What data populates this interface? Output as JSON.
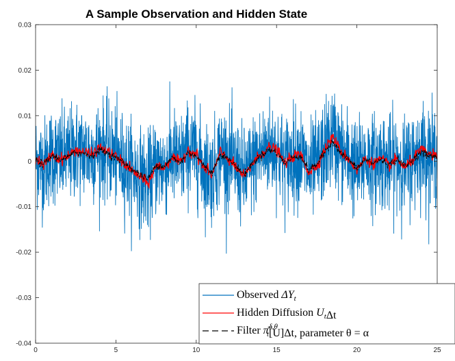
{
  "chart_data": {
    "type": "line",
    "title": "A Sample Observation and Hidden State",
    "xlabel": "",
    "ylabel": "",
    "xlim": [
      0,
      25
    ],
    "ylim": [
      -0.04,
      0.03
    ],
    "x_ticks": [
      0,
      5,
      10,
      15,
      20,
      25
    ],
    "x_tick_labels": [
      "0",
      "5",
      "10",
      "15",
      "20",
      "25"
    ],
    "y_ticks": [
      -0.04,
      -0.03,
      -0.02,
      -0.01,
      0,
      0.01,
      0.02,
      0.03
    ],
    "y_tick_labels": [
      "-0.04",
      "-0.03",
      "-0.02",
      "-0.01",
      "0",
      "0.01",
      "0.02",
      "0.03"
    ],
    "grid": false,
    "legend_position": "bottom-right",
    "series": [
      {
        "name": "Observed ΔY_t",
        "legend_parts": {
          "text": "Observed ",
          "math": "ΔY",
          "sub": "t"
        },
        "color": "#0072BD",
        "style": "solid",
        "noise_amplitude": 0.0085,
        "max": 0.027,
        "min": -0.027
      },
      {
        "name": "Hidden Diffusion U_tΔt",
        "legend_parts": {
          "text": "Hidden Diffusion ",
          "math": "U",
          "sub": "t",
          "after": "Δt"
        },
        "color": "#FF0000",
        "style": "solid",
        "x": [
          0,
          0.5,
          1,
          1.5,
          2,
          2.5,
          3,
          3.5,
          4,
          4.5,
          5,
          5.5,
          6,
          6.5,
          7,
          7.5,
          8,
          8.5,
          9,
          9.5,
          10,
          10.5,
          11,
          11.5,
          12,
          12.5,
          13,
          13.5,
          14,
          14.5,
          15,
          15.5,
          16,
          16.5,
          17,
          17.5,
          18,
          18.5,
          19,
          19.5,
          20,
          20.5,
          21,
          21.5,
          22,
          22.5,
          23,
          23.5,
          24,
          24.5,
          25
        ],
        "values": [
          0.0005,
          -0.001,
          0.0015,
          0.0005,
          0.001,
          0.0025,
          0.002,
          0.0015,
          0.003,
          0.002,
          0.001,
          -0.0005,
          -0.002,
          -0.0035,
          -0.005,
          -0.001,
          -0.0015,
          0.001,
          -0.0005,
          0.0025,
          0.0015,
          -0.0015,
          -0.003,
          0.002,
          0.0005,
          -0.0015,
          -0.0035,
          -0.0005,
          0.0015,
          0.003,
          0.0025,
          -0.0005,
          0.001,
          0.0015,
          -0.0025,
          -0.001,
          0.0025,
          0.0055,
          0.002,
          0.0005,
          -0.002,
          0.0005,
          -0.0005,
          0.0005,
          -0.001,
          0.0005,
          -0.0015,
          0.0005,
          0.0025,
          0.0015,
          0.001
        ]
      },
      {
        "name": "Filter π̄_t^{δ,θ}[U]Δt, parameter θ = α",
        "legend_parts": {
          "text": "Filter ",
          "math": "π̄",
          "sub": "t",
          "sup": "δ,θ",
          "after": "[U]Δt, parameter θ = α"
        },
        "color": "#000000",
        "style": "dashed",
        "x": [
          0,
          0.5,
          1,
          1.5,
          2,
          2.5,
          3,
          3.5,
          4,
          4.5,
          5,
          5.5,
          6,
          6.5,
          7,
          7.5,
          8,
          8.5,
          9,
          9.5,
          10,
          10.5,
          11,
          11.5,
          12,
          12.5,
          13,
          13.5,
          14,
          14.5,
          15,
          15.5,
          16,
          16.5,
          17,
          17.5,
          18,
          18.5,
          19,
          19.5,
          20,
          20.5,
          21,
          21.5,
          22,
          22.5,
          23,
          23.5,
          24,
          24.5,
          25
        ],
        "values": [
          0.0003,
          -0.0008,
          0.0012,
          0.0004,
          0.0008,
          0.002,
          0.0017,
          0.0012,
          0.0025,
          0.0017,
          0.0008,
          -0.0004,
          -0.0017,
          -0.003,
          -0.004,
          -0.0008,
          -0.0012,
          0.0008,
          -0.0004,
          0.002,
          0.0012,
          -0.0012,
          -0.0025,
          0.0017,
          0.0004,
          -0.0012,
          -0.003,
          -0.0004,
          0.0012,
          0.0025,
          0.002,
          -0.0004,
          0.0008,
          0.0012,
          -0.002,
          -0.0008,
          0.002,
          0.0045,
          0.0017,
          0.0004,
          -0.0017,
          0.0004,
          -0.0004,
          0.0004,
          -0.0008,
          0.0004,
          -0.0012,
          0.0004,
          0.002,
          0.0012,
          0.0008
        ]
      }
    ]
  }
}
